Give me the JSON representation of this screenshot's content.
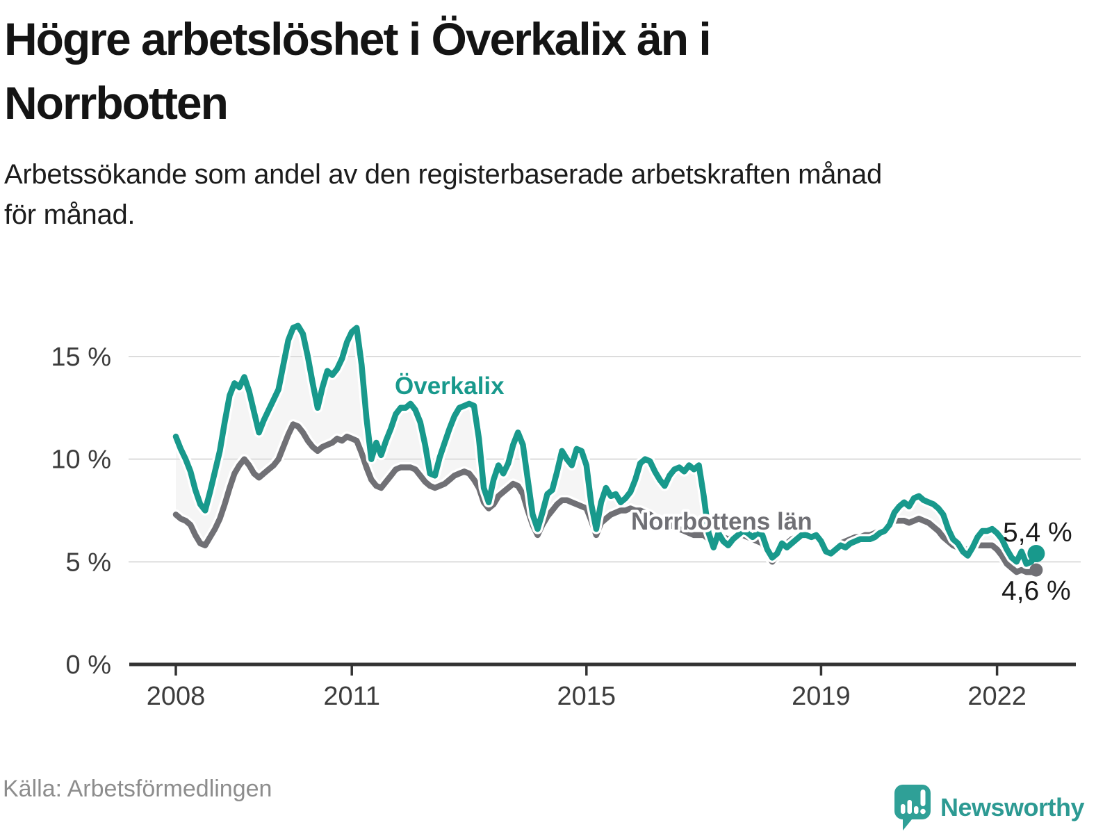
{
  "title": {
    "line1": "Högre arbetslöshet i Överkalix än i",
    "line2": "Norrbotten"
  },
  "subtitle": {
    "line1": "Arbetssökande som andel av den registerbaserade arbetskraften månad",
    "line2": "för månad."
  },
  "source": "Källa: Arbetsförmedlingen",
  "brand": {
    "name": "Newsworthy",
    "icon": "speech-bubble-bar-chart-exclamation-icon"
  },
  "colors": {
    "overkalix": "#18998C",
    "norrbotten": "#707075",
    "band_fill": "#f5f5f5",
    "gridline": "#dcdcdc",
    "axis": "#333333",
    "tick_label": "#3c3c3c",
    "end_label": "#1a1a1a",
    "logo_teal": "#2fa097"
  },
  "chart_data": {
    "type": "line",
    "title": "Högre arbetslöshet i Överkalix än i Norrbotten",
    "frequency": "monthly",
    "start": "2008-01",
    "end": "2022-09",
    "unit": "%",
    "ylim": [
      0,
      17
    ],
    "grid": true,
    "y_axis": {
      "ticks": [
        {
          "value": 0,
          "label": "0 %"
        },
        {
          "value": 5,
          "label": "5 %"
        },
        {
          "value": 10,
          "label": "10 %"
        },
        {
          "value": 15,
          "label": "15 %"
        }
      ]
    },
    "x_axis": {
      "ticks": [
        {
          "year": 2008,
          "label": "2008"
        },
        {
          "year": 2011,
          "label": "2011"
        },
        {
          "year": 2015,
          "label": "2015"
        },
        {
          "year": 2019,
          "label": "2019"
        },
        {
          "year": 2022,
          "label": "2022"
        }
      ]
    },
    "series": [
      {
        "name": "Överkalix",
        "color": "#18998C",
        "end_label": "5,4 %",
        "end_value": 5.4,
        "values": [
          11.1,
          10.5,
          10.0,
          9.4,
          8.5,
          7.8,
          7.5,
          8.4,
          9.4,
          10.4,
          11.8,
          13.1,
          13.7,
          13.5,
          14.0,
          13.3,
          12.3,
          11.3,
          11.9,
          12.4,
          12.9,
          13.4,
          14.6,
          15.8,
          16.4,
          16.5,
          16.1,
          15.0,
          13.7,
          12.5,
          13.5,
          14.3,
          14.1,
          14.4,
          14.9,
          15.7,
          16.2,
          16.4,
          14.6,
          12.0,
          10.0,
          10.8,
          10.2,
          10.9,
          11.5,
          12.2,
          12.5,
          12.5,
          12.7,
          12.4,
          11.8,
          10.7,
          9.3,
          9.2,
          10.1,
          10.8,
          11.5,
          12.1,
          12.5,
          12.6,
          12.7,
          12.6,
          11.0,
          8.6,
          7.9,
          9.0,
          9.7,
          9.3,
          9.8,
          10.7,
          11.3,
          10.7,
          9.0,
          7.3,
          6.6,
          7.4,
          8.3,
          8.5,
          9.4,
          10.4,
          10.0,
          9.7,
          10.5,
          10.4,
          9.7,
          7.8,
          6.6,
          7.9,
          8.6,
          8.2,
          8.3,
          7.9,
          8.1,
          8.4,
          9.0,
          9.8,
          10.0,
          9.9,
          9.4,
          9.0,
          8.7,
          9.2,
          9.5,
          9.6,
          9.4,
          9.7,
          9.5,
          9.7,
          8.2,
          6.4,
          5.7,
          6.4,
          6.0,
          5.8,
          6.1,
          6.3,
          6.5,
          6.4,
          6.2,
          6.4,
          6.3,
          5.6,
          5.2,
          5.4,
          5.9,
          5.7,
          5.9,
          6.1,
          6.3,
          6.3,
          6.2,
          6.3,
          6.0,
          5.5,
          5.4,
          5.6,
          5.8,
          5.7,
          5.9,
          6.0,
          6.1,
          6.1,
          6.1,
          6.2,
          6.4,
          6.5,
          6.8,
          7.4,
          7.7,
          7.9,
          7.7,
          8.1,
          8.2,
          8.0,
          7.9,
          7.8,
          7.6,
          7.3,
          6.6,
          6.1,
          5.9,
          5.5,
          5.3,
          5.7,
          6.2,
          6.5,
          6.5,
          6.6,
          6.4,
          6.1,
          5.6,
          5.2,
          5.0,
          5.5,
          4.9,
          5.0,
          5.4
        ]
      },
      {
        "name": "Norrbottens län",
        "color": "#707075",
        "end_label": "4,6 %",
        "end_value": 4.6,
        "values": [
          7.3,
          7.1,
          7.0,
          6.8,
          6.3,
          5.9,
          5.8,
          6.2,
          6.6,
          7.1,
          7.8,
          8.6,
          9.3,
          9.7,
          10.0,
          9.7,
          9.3,
          9.1,
          9.3,
          9.5,
          9.7,
          10.0,
          10.6,
          11.2,
          11.7,
          11.6,
          11.3,
          10.9,
          10.6,
          10.4,
          10.6,
          10.7,
          10.8,
          11.0,
          10.9,
          11.1,
          11.0,
          10.9,
          10.3,
          9.6,
          9.0,
          8.7,
          8.6,
          8.9,
          9.2,
          9.5,
          9.6,
          9.6,
          9.6,
          9.5,
          9.2,
          8.9,
          8.7,
          8.6,
          8.7,
          8.8,
          9.0,
          9.2,
          9.3,
          9.4,
          9.3,
          9.0,
          8.6,
          7.9,
          7.6,
          7.8,
          8.2,
          8.4,
          8.6,
          8.8,
          8.7,
          8.3,
          7.5,
          6.8,
          6.3,
          6.8,
          7.2,
          7.5,
          7.8,
          8.0,
          8.0,
          7.9,
          7.8,
          7.7,
          7.6,
          7.0,
          6.3,
          6.9,
          7.1,
          7.3,
          7.4,
          7.5,
          7.5,
          7.6,
          7.5,
          7.5,
          7.4,
          7.3,
          7.1,
          7.0,
          6.9,
          6.8,
          6.7,
          6.6,
          6.5,
          6.4,
          6.3,
          6.3,
          6.3,
          6.1,
          5.9,
          6.1,
          6.2,
          6.1,
          6.2,
          6.3,
          6.3,
          6.2,
          6.1,
          6.0,
          5.9,
          5.4,
          5.0,
          5.3,
          5.7,
          5.9,
          6.1,
          6.2,
          6.3,
          6.4,
          6.3,
          6.3,
          5.8,
          5.5,
          5.4,
          5.7,
          5.9,
          6.0,
          6.1,
          6.2,
          6.2,
          6.3,
          6.3,
          6.4,
          6.5,
          6.5,
          6.8,
          7.0,
          7.0,
          7.0,
          6.9,
          7.0,
          7.1,
          7.0,
          6.9,
          6.7,
          6.5,
          6.2,
          6.0,
          5.8,
          5.7,
          5.6,
          5.6,
          5.7,
          5.8,
          5.8,
          5.8,
          5.8,
          5.6,
          5.3,
          4.9,
          4.7,
          4.5,
          4.6,
          4.5,
          4.5,
          4.6
        ]
      }
    ],
    "legend_position": "inline-labels"
  }
}
